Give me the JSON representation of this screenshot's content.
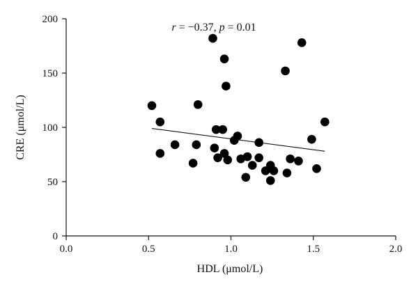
{
  "chart_data": {
    "type": "scatter",
    "xlabel": "HDL (μmol/L)",
    "ylabel": "CRE (μmol/L)",
    "xlim": [
      0,
      2.0
    ],
    "ylim": [
      0,
      200
    ],
    "x_ticks": [
      "0.0",
      "0.5",
      "1.0",
      "1.5",
      "2.0"
    ],
    "x_tick_values": [
      0,
      0.5,
      1.0,
      1.5,
      2.0
    ],
    "y_ticks": [
      "0",
      "50",
      "100",
      "150",
      "200"
    ],
    "y_tick_values": [
      0,
      50,
      100,
      150,
      200
    ],
    "annotation": "r = −0.37, p = 0.01",
    "grid": false,
    "points": [
      [
        0.52,
        120
      ],
      [
        0.57,
        105
      ],
      [
        0.57,
        76
      ],
      [
        0.66,
        84
      ],
      [
        0.77,
        67
      ],
      [
        0.79,
        84
      ],
      [
        0.8,
        121
      ],
      [
        0.89,
        182
      ],
      [
        0.9,
        81
      ],
      [
        0.91,
        98
      ],
      [
        0.92,
        72
      ],
      [
        0.95,
        98
      ],
      [
        0.96,
        76
      ],
      [
        0.96,
        163
      ],
      [
        0.97,
        138
      ],
      [
        0.98,
        70
      ],
      [
        1.02,
        88
      ],
      [
        1.04,
        92
      ],
      [
        1.06,
        71
      ],
      [
        1.09,
        54
      ],
      [
        1.1,
        73
      ],
      [
        1.13,
        65
      ],
      [
        1.17,
        86
      ],
      [
        1.17,
        72
      ],
      [
        1.21,
        60
      ],
      [
        1.24,
        51
      ],
      [
        1.24,
        65
      ],
      [
        1.26,
        60
      ],
      [
        1.33,
        152
      ],
      [
        1.34,
        58
      ],
      [
        1.36,
        71
      ],
      [
        1.41,
        69
      ],
      [
        1.43,
        178
      ],
      [
        1.49,
        89
      ],
      [
        1.52,
        62
      ],
      [
        1.57,
        105
      ]
    ],
    "trendline": [
      [
        0.52,
        99
      ],
      [
        1.57,
        78
      ]
    ]
  }
}
